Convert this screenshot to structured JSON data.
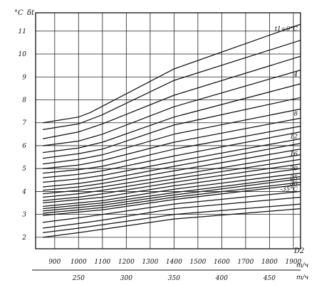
{
  "chart_data": {
    "type": "line",
    "y_unit": "°C",
    "y_symbol": "δt",
    "x_symbol": "D2",
    "x_unit": "m/ч",
    "x_bottom_unit": "m/ч",
    "xlim": [
      820,
      1930
    ],
    "ylim": [
      1.5,
      11.8
    ],
    "y_ticks": [
      2,
      3,
      4,
      5,
      6,
      7,
      8,
      9,
      10,
      11
    ],
    "x_ticks": [
      900,
      1000,
      1100,
      1200,
      1300,
      1400,
      1500,
      1600,
      1700,
      1800,
      1900
    ],
    "x_secondary_ticks": [
      {
        "label": "250",
        "x": 1000
      },
      {
        "label": "300",
        "x": 1200
      },
      {
        "label": "350",
        "x": 1400
      },
      {
        "label": "400",
        "x": 1600
      },
      {
        "label": "450",
        "x": 1800
      }
    ],
    "grid": true,
    "series": [
      {
        "name": "t₁=0°C",
        "label": "t1=0°C",
        "points": [
          [
            850,
            7.0
          ],
          [
            1000,
            7.25
          ],
          [
            1050,
            7.45
          ],
          [
            1400,
            9.35
          ],
          [
            1930,
            11.3
          ]
        ]
      },
      {
        "points": [
          [
            850,
            6.7
          ],
          [
            1000,
            6.95
          ],
          [
            1100,
            7.35
          ],
          [
            1400,
            8.85
          ],
          [
            1930,
            10.6
          ]
        ]
      },
      {
        "points": [
          [
            850,
            6.3
          ],
          [
            1000,
            6.6
          ],
          [
            1100,
            6.95
          ],
          [
            1400,
            8.2
          ],
          [
            1930,
            9.9
          ]
        ]
      },
      {
        "name": "4",
        "label": "4",
        "points": [
          [
            850,
            6.0
          ],
          [
            1000,
            6.2
          ],
          [
            1100,
            6.5
          ],
          [
            1400,
            7.7
          ],
          [
            1930,
            9.3
          ]
        ]
      },
      {
        "points": [
          [
            850,
            5.7
          ],
          [
            1000,
            5.9
          ],
          [
            1100,
            6.15
          ],
          [
            1400,
            7.25
          ],
          [
            1930,
            8.7
          ]
        ]
      },
      {
        "points": [
          [
            850,
            5.45
          ],
          [
            1000,
            5.65
          ],
          [
            1100,
            5.85
          ],
          [
            1400,
            6.9
          ],
          [
            1930,
            8.1
          ]
        ]
      },
      {
        "name": "8",
        "label": "8",
        "points": [
          [
            850,
            5.2
          ],
          [
            1000,
            5.4
          ],
          [
            1100,
            5.6
          ],
          [
            1400,
            6.5
          ],
          [
            1930,
            7.6
          ]
        ]
      },
      {
        "points": [
          [
            850,
            5.0
          ],
          [
            1000,
            5.15
          ],
          [
            1100,
            5.35
          ],
          [
            1400,
            6.15
          ],
          [
            1930,
            7.2
          ]
        ]
      },
      {
        "points": [
          [
            850,
            4.8
          ],
          [
            1000,
            4.95
          ],
          [
            1100,
            5.1
          ],
          [
            1400,
            5.85
          ],
          [
            1930,
            6.85
          ]
        ]
      },
      {
        "name": "12",
        "label": "12",
        "points": [
          [
            850,
            4.6
          ],
          [
            1000,
            4.75
          ],
          [
            1100,
            4.9
          ],
          [
            1400,
            5.55
          ],
          [
            1930,
            6.6
          ]
        ]
      },
      {
        "points": [
          [
            850,
            4.4
          ],
          [
            1000,
            4.55
          ],
          [
            1100,
            4.7
          ],
          [
            1400,
            5.3
          ],
          [
            1930,
            6.3
          ]
        ]
      },
      {
        "points": [
          [
            850,
            4.2
          ],
          [
            1000,
            4.35
          ],
          [
            1100,
            4.5
          ],
          [
            1400,
            5.1
          ],
          [
            1930,
            6.1
          ]
        ]
      },
      {
        "name": "16",
        "label": "16",
        "points": [
          [
            850,
            4.05
          ],
          [
            1000,
            4.2
          ],
          [
            1100,
            4.35
          ],
          [
            1400,
            4.9
          ],
          [
            1930,
            5.85
          ]
        ]
      },
      {
        "points": [
          [
            850,
            3.9
          ],
          [
            1000,
            4.05
          ],
          [
            1100,
            4.2
          ],
          [
            1400,
            4.7
          ],
          [
            1930,
            5.6
          ]
        ]
      },
      {
        "points": [
          [
            850,
            3.75
          ],
          [
            1000,
            3.9
          ],
          [
            1100,
            4.05
          ],
          [
            1400,
            4.55
          ],
          [
            1930,
            5.4
          ]
        ]
      },
      {
        "name": "20",
        "label": "20",
        "points": [
          [
            850,
            3.6
          ],
          [
            1000,
            3.75
          ],
          [
            1100,
            3.9
          ],
          [
            1400,
            4.4
          ],
          [
            1930,
            5.2
          ]
        ]
      },
      {
        "points": [
          [
            850,
            3.5
          ],
          [
            1000,
            3.65
          ],
          [
            1100,
            3.75
          ],
          [
            1400,
            4.25
          ],
          [
            1930,
            5.0
          ]
        ]
      },
      {
        "name": "25",
        "label": "25",
        "points": [
          [
            850,
            3.35
          ],
          [
            1000,
            3.5
          ],
          [
            1100,
            3.6
          ],
          [
            1400,
            4.1
          ],
          [
            1930,
            4.8
          ]
        ]
      },
      {
        "points": [
          [
            850,
            3.25
          ],
          [
            1000,
            3.4
          ],
          [
            1100,
            3.5
          ],
          [
            1400,
            3.95
          ],
          [
            1930,
            4.65
          ]
        ]
      },
      {
        "name": "30",
        "label": "30",
        "points": [
          [
            850,
            3.15
          ],
          [
            1000,
            3.3
          ],
          [
            1100,
            3.4
          ],
          [
            1400,
            3.85
          ],
          [
            1930,
            4.55
          ]
        ]
      },
      {
        "points": [
          [
            850,
            3.05
          ],
          [
            1000,
            3.2
          ],
          [
            1100,
            3.3
          ],
          [
            1400,
            3.75
          ],
          [
            1930,
            4.4
          ]
        ]
      },
      {
        "name": "-35°C",
        "label": "-35°C",
        "points": [
          [
            850,
            2.95
          ],
          [
            1000,
            3.1
          ],
          [
            1100,
            3.2
          ],
          [
            1400,
            3.65
          ],
          [
            1930,
            4.3
          ]
        ]
      },
      {
        "points": [
          [
            850,
            2.65
          ],
          [
            1000,
            2.85
          ],
          [
            1100,
            3.0
          ],
          [
            1400,
            3.45
          ],
          [
            1930,
            4.0
          ]
        ]
      },
      {
        "points": [
          [
            850,
            2.4
          ],
          [
            1000,
            2.6
          ],
          [
            1100,
            2.75
          ],
          [
            1400,
            3.25
          ],
          [
            1930,
            3.75
          ]
        ]
      },
      {
        "points": [
          [
            850,
            2.2
          ],
          [
            1000,
            2.4
          ],
          [
            1100,
            2.55
          ],
          [
            1400,
            3.0
          ],
          [
            1930,
            3.45
          ]
        ]
      },
      {
        "points": [
          [
            850,
            2.0
          ],
          [
            1000,
            2.2
          ],
          [
            1100,
            2.35
          ],
          [
            1400,
            2.8
          ],
          [
            1930,
            3.25
          ]
        ]
      }
    ]
  }
}
